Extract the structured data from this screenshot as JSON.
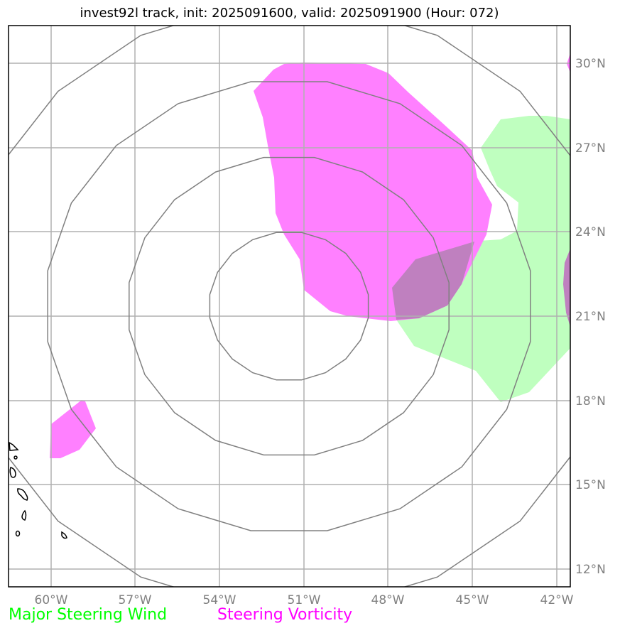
{
  "title": "invest92l track, init: 2025091600, valid: 2025091900 (Hour: 072)",
  "lon_labels": [
    "60°W",
    "57°W",
    "54°W",
    "51°W",
    "48°W",
    "45°W",
    "42°W"
  ],
  "lat_labels": [
    "30°N",
    "27°N",
    "24°N",
    "21°N",
    "18°N",
    "15°N",
    "12°N"
  ],
  "legend": [
    {
      "label": "Major Steering Wind",
      "color": "#00ff00"
    },
    {
      "label": "Steering Vorticity",
      "color": "#ff00ff"
    }
  ],
  "colors": {
    "wind_fill": "#bfffbf",
    "vorticity_fill": "#ff80ff",
    "overlap_fill": "#bf80bf",
    "rings": "#808080",
    "grid": "#b0b0b0"
  }
}
